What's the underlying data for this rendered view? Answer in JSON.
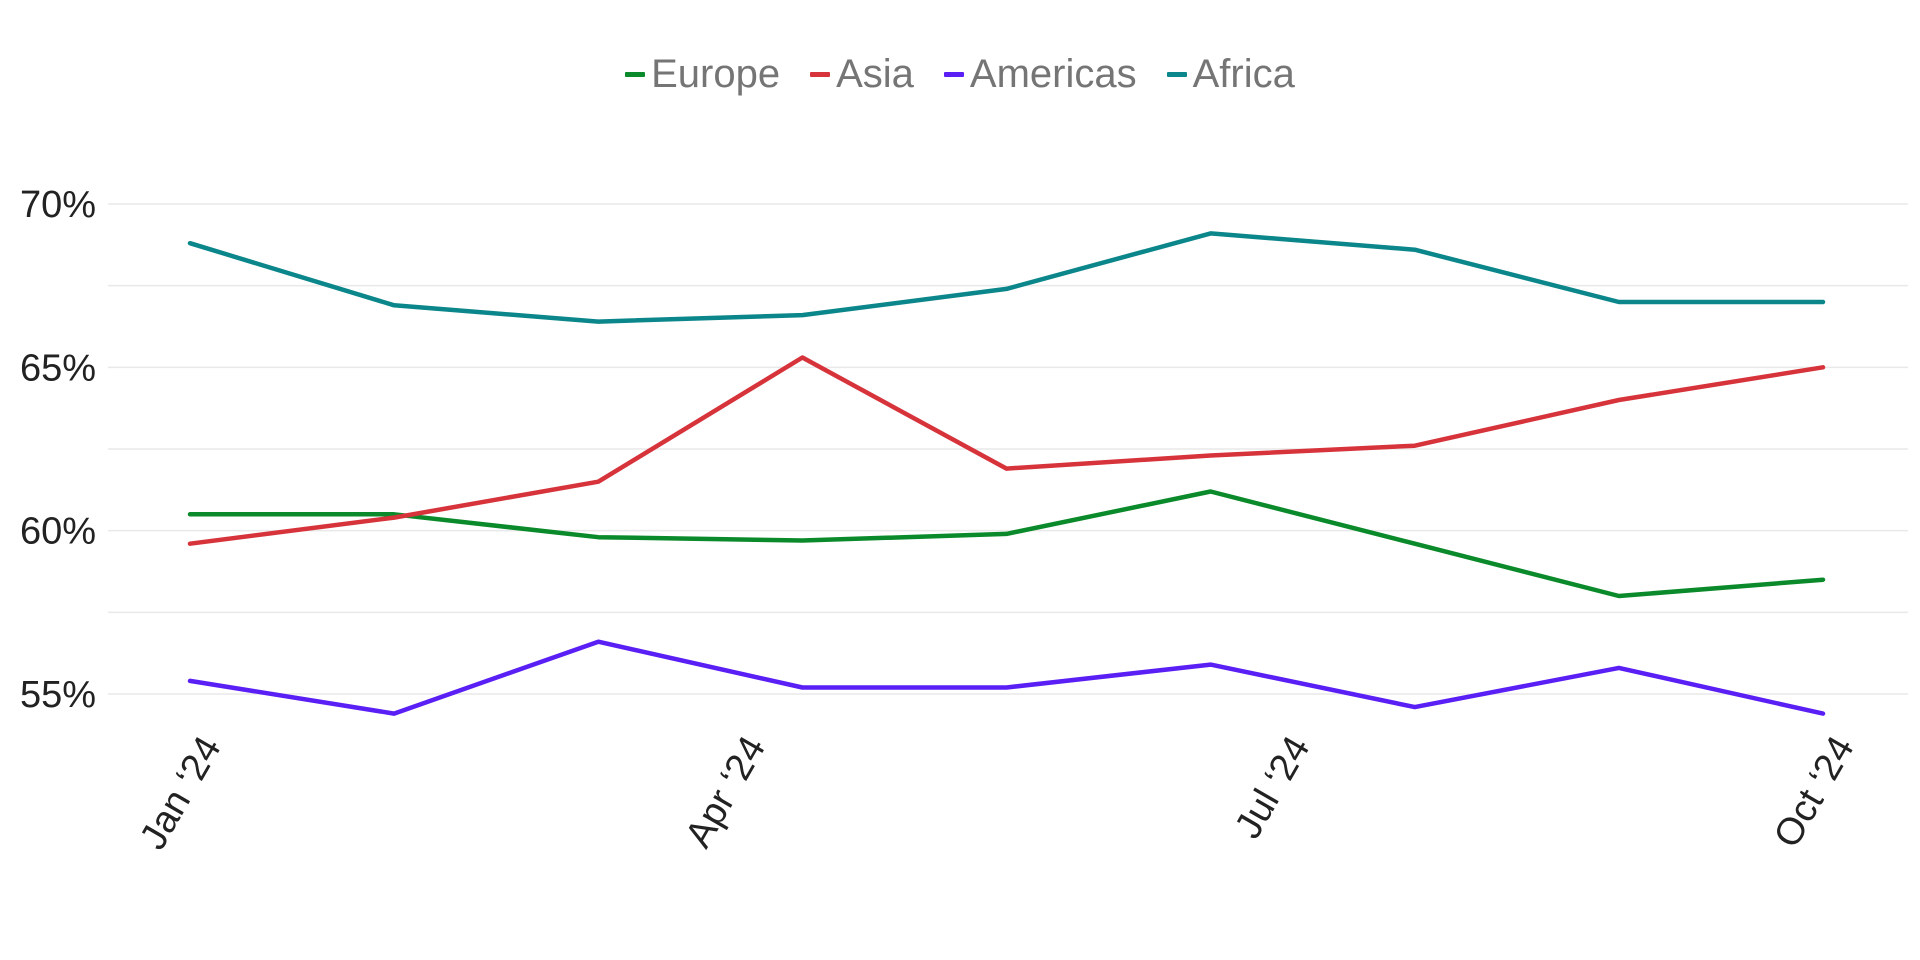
{
  "chart_data": {
    "type": "line",
    "title": "",
    "xlabel": "",
    "ylabel": "",
    "ylim": [
      54,
      71
    ],
    "y_ticks": [
      {
        "value": 55,
        "label": "55%"
      },
      {
        "value": 60,
        "label": "60%"
      },
      {
        "value": 65,
        "label": "65%"
      },
      {
        "value": 70,
        "label": "70%"
      }
    ],
    "y_gridlines": [
      55,
      57.5,
      60,
      62.5,
      65,
      67.5,
      70
    ],
    "x_range": [
      0,
      9
    ],
    "x_ticks": [
      {
        "value": 0,
        "label": "Jan ‘24"
      },
      {
        "value": 3,
        "label": "Apr ‘24"
      },
      {
        "value": 6,
        "label": "Jul ‘24"
      },
      {
        "value": 9,
        "label": "Oct ‘24"
      }
    ],
    "x": [
      0,
      1,
      2,
      3,
      4,
      5,
      6,
      7,
      8,
      9
    ],
    "grid": true,
    "legend_position": "top-center",
    "series": [
      {
        "name": "Europe",
        "color": "#0a8a2a",
        "values": [
          60.5,
          60.5,
          59.8,
          59.7,
          59.9,
          61.2,
          59.6,
          58.0,
          58.5,
          null
        ]
      },
      {
        "name": "Asia",
        "color": "#d7333b",
        "values": [
          59.6,
          60.4,
          61.5,
          65.3,
          61.9,
          62.3,
          62.6,
          64.0,
          65.0,
          null
        ]
      },
      {
        "name": "Americas",
        "color": "#5a1ff5",
        "values": [
          55.4,
          54.4,
          56.6,
          55.2,
          55.2,
          55.9,
          54.6,
          55.8,
          54.4,
          null
        ]
      },
      {
        "name": "Africa",
        "color": "#0b868a",
        "values": [
          68.8,
          66.9,
          66.4,
          66.6,
          67.4,
          69.1,
          68.6,
          67.0,
          67.0,
          null
        ]
      }
    ]
  }
}
